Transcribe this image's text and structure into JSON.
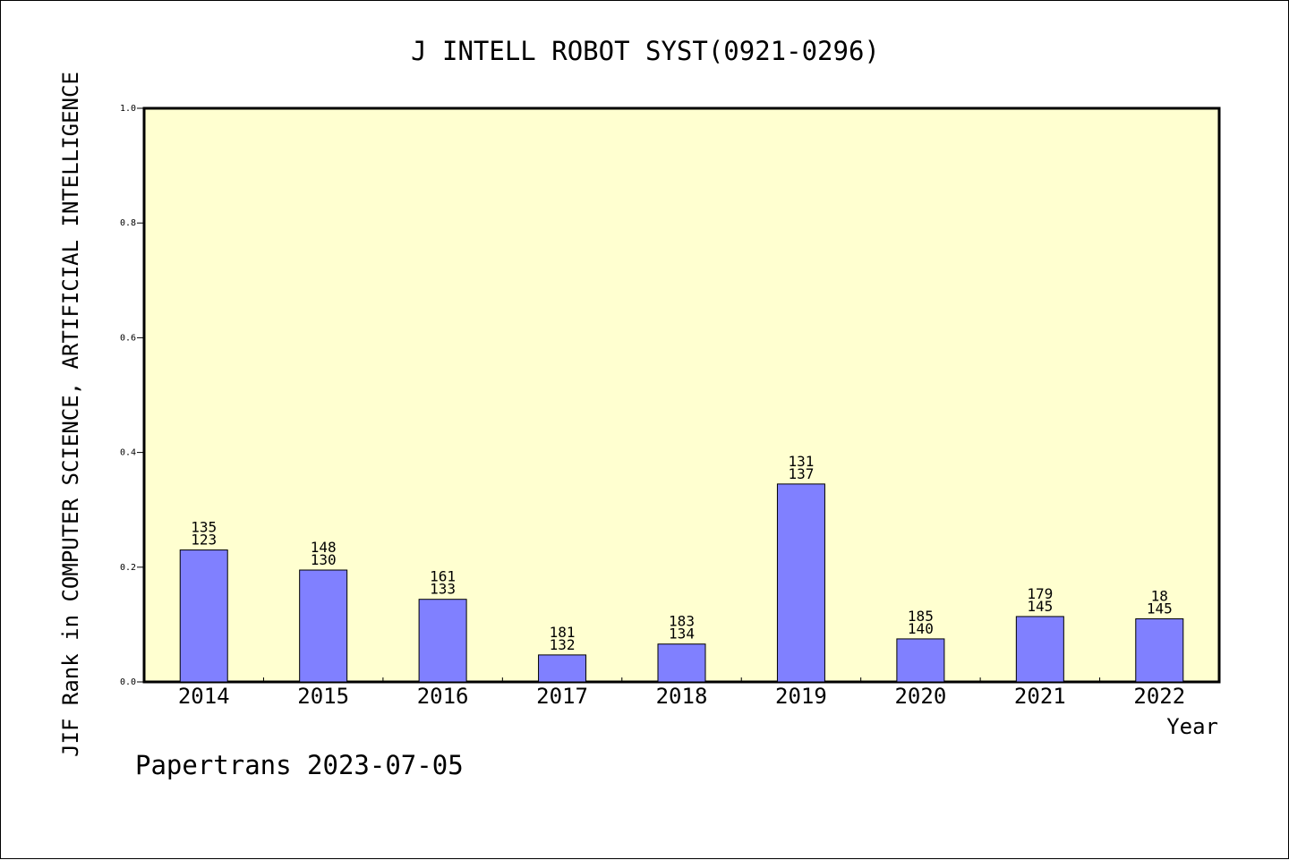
{
  "chart_data": {
    "type": "bar",
    "title": "J INTELL ROBOT SYST(0921-0296)",
    "xlabel": "Year",
    "ylabel": "JIF Rank in COMPUTER SCIENCE, ARTIFICIAL INTELLIGENCE",
    "footer": "Papertrans 2023-07-05",
    "ylim": [
      0,
      1.0
    ],
    "yticks": [
      "0.0",
      "0.2",
      "0.4",
      "0.6",
      "0.8",
      "1.0"
    ],
    "categories": [
      "2014",
      "2015",
      "2016",
      "2017",
      "2018",
      "2019",
      "2020",
      "2021",
      "2022"
    ],
    "values": [
      0.23,
      0.195,
      0.144,
      0.047,
      0.066,
      0.345,
      0.075,
      0.114,
      0.11
    ],
    "label_top": [
      "135",
      "148",
      "161",
      "181",
      "183",
      "131",
      "185",
      "179",
      "18"
    ],
    "label_bottom": [
      "123",
      "130",
      "133",
      "132",
      "134",
      "137",
      "140",
      "145",
      "145"
    ],
    "grid": false,
    "colors": {
      "plot_bg": "#ffffd0",
      "bar_fill": "#8080ff",
      "bar_stroke": "#000000",
      "axis": "#000000"
    }
  }
}
